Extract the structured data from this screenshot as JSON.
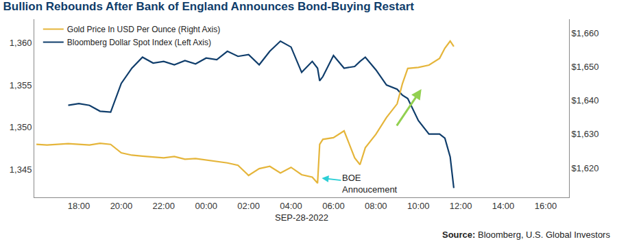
{
  "chart_data": {
    "type": "line",
    "title": "Bullion Rebounds After Bank of England Announces Bond-Buying Restart",
    "x_label": "SEP-28-2022",
    "source": "Source: Bloomberg, U.S. Global Investors",
    "legend": "upper left",
    "grid": false,
    "x": [
      16,
      16.5,
      17,
      17.5,
      18,
      18.5,
      19,
      19.5,
      20,
      20.5,
      21,
      21.5,
      22,
      22.5,
      23,
      23.5,
      24,
      24.5,
      25,
      25.5,
      26,
      26.5,
      27,
      27.5,
      28,
      28.5,
      29,
      29.25,
      29.35,
      29.5,
      30,
      30.5,
      31,
      31.25,
      31.5,
      32,
      32.5,
      33,
      33.25,
      33.5,
      34,
      34.5,
      35,
      35.25,
      35.5,
      35.67
    ],
    "xlim": [
      15.9,
      41.1
    ],
    "xticks": [
      {
        "value": 18,
        "label": "18:00"
      },
      {
        "value": 20,
        "label": "20:00"
      },
      {
        "value": 22,
        "label": "22:00"
      },
      {
        "value": 24,
        "label": "00:00"
      },
      {
        "value": 26,
        "label": "02:00"
      },
      {
        "value": 28,
        "label": "04:00"
      },
      {
        "value": 30,
        "label": "06:00"
      },
      {
        "value": 32,
        "label": "08:00"
      },
      {
        "value": 34,
        "label": "10:00"
      },
      {
        "value": 36,
        "label": "12:00"
      },
      {
        "value": 38,
        "label": "14:00"
      },
      {
        "value": 40,
        "label": "16:00"
      }
    ],
    "ylim": [
      1341.7,
      1362.8
    ],
    "yticks": [
      {
        "value": 1345,
        "label": "1,345"
      },
      {
        "value": 1350,
        "label": "1,350"
      },
      {
        "value": 1355,
        "label": "1,355"
      },
      {
        "value": 1360,
        "label": "1,360"
      }
    ],
    "y2lim": [
      1611.3,
      1664.1
    ],
    "y2ticks": [
      {
        "value": 1620,
        "label": "$1,620"
      },
      {
        "value": 1630,
        "label": "$1,630"
      },
      {
        "value": 1640,
        "label": "$1,640"
      },
      {
        "value": 1650,
        "label": "$1,650"
      },
      {
        "value": 1660,
        "label": "$1,660"
      }
    ],
    "series": [
      {
        "name": "Gold Price In USD Per Ounce (Right Axis)",
        "color": "#e5b53a",
        "axis": "y2",
        "line_style": "solid",
        "values": [
          1627.0,
          1626.8,
          1627.0,
          1627.2,
          1627.0,
          1626.8,
          1627.3,
          1627.0,
          1624.5,
          1623.8,
          1623.5,
          1623.2,
          1623.0,
          1623.4,
          1622.6,
          1622.8,
          1622.4,
          1622.0,
          1621.5,
          1620.8,
          1617.8,
          1619.8,
          1620.5,
          1618.5,
          1620.2,
          1618.0,
          1617.3,
          1615.5,
          1627.0,
          1628.5,
          1629.0,
          1631.0,
          1623.0,
          1621.0,
          1626.0,
          1630.0,
          1635.0,
          1639.0,
          1645.0,
          1649.5,
          1649.8,
          1650.5,
          1652.5,
          1655.5,
          1657.6,
          1656.0
        ]
      },
      {
        "name": "Bloomberg Dollar Spot Index (Left Axis)",
        "color": "#0f3d6b",
        "line_style": "solid",
        "values": [
          null,
          null,
          null,
          1352.6,
          1352.8,
          1352.6,
          1351.9,
          1351.8,
          1355.2,
          1357.0,
          1358.3,
          1357.6,
          1357.8,
          1357.4,
          1357.9,
          1357.5,
          1358.2,
          1358.0,
          1359.0,
          1358.4,
          1358.6,
          1357.4,
          1359.0,
          1360.2,
          1359.5,
          1356.5,
          1357.8,
          1357.0,
          1355.5,
          1356.0,
          1358.5,
          1357.0,
          1357.2,
          1357.8,
          1358.3,
          1356.8,
          1355.0,
          1354.5,
          1353.8,
          1353.4,
          1350.8,
          1349.2,
          1349.2,
          1348.7,
          1346.5,
          1342.8
        ]
      }
    ],
    "annotations": [
      {
        "text": "BOE Annoucement",
        "x": 29.45,
        "y": 1617,
        "axis": "y2"
      }
    ]
  }
}
